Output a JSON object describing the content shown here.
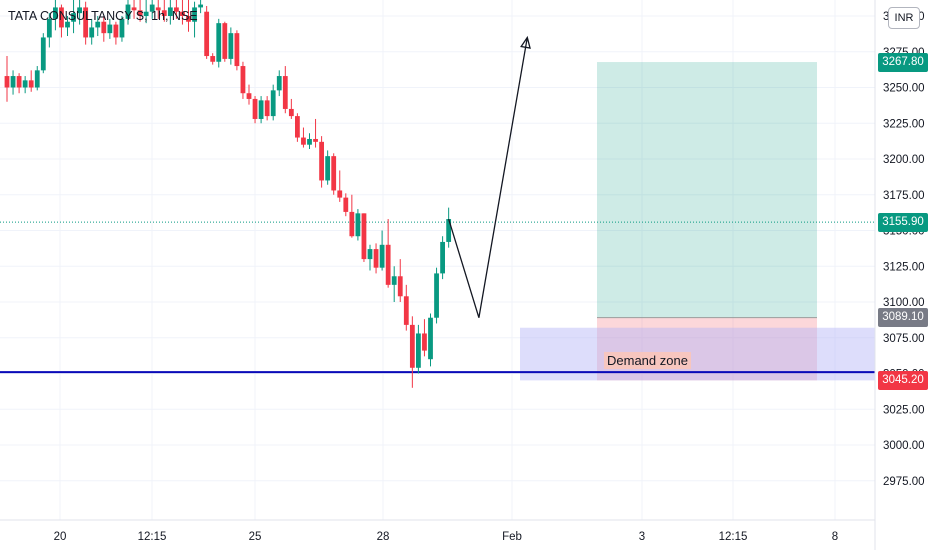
{
  "chart_data": {
    "type": "candlestick",
    "title": "TATA CONSULTANCY S, 1h, NSE",
    "currency": "INR",
    "y_ticks": [
      2975,
      3000,
      3025,
      3050,
      3075,
      3100,
      3125,
      3150,
      3175,
      3200,
      3225,
      3250,
      3275,
      3300
    ],
    "ylim": [
      2955,
      3312
    ],
    "x_tick_labels": [
      "20",
      "12:15",
      "25",
      "28",
      "Feb",
      "3",
      "12:15",
      "8"
    ],
    "candles": [
      [
        3258,
        3272,
        3240,
        3250
      ],
      [
        3250,
        3262,
        3245,
        3258
      ],
      [
        3258,
        3260,
        3246,
        3250
      ],
      [
        3250,
        3258,
        3246,
        3255
      ],
      [
        3255,
        3262,
        3247,
        3250
      ],
      [
        3250,
        3265,
        3248,
        3262
      ],
      [
        3262,
        3288,
        3260,
        3285
      ],
      [
        3285,
        3302,
        3278,
        3298
      ],
      [
        3298,
        3312,
        3290,
        3306
      ],
      [
        3306,
        3308,
        3285,
        3292
      ],
      [
        3292,
        3300,
        3286,
        3296
      ],
      [
        3296,
        3312,
        3288,
        3302
      ],
      [
        3302,
        3312,
        3294,
        3306
      ],
      [
        3306,
        3310,
        3280,
        3285
      ],
      [
        3285,
        3298,
        3280,
        3292
      ],
      [
        3292,
        3300,
        3286,
        3296
      ],
      [
        3296,
        3300,
        3282,
        3288
      ],
      [
        3288,
        3298,
        3284,
        3294
      ],
      [
        3294,
        3296,
        3280,
        3285
      ],
      [
        3285,
        3300,
        3282,
        3298
      ],
      [
        3298,
        3312,
        3294,
        3308
      ],
      [
        3306,
        3312,
        3298,
        3304
      ],
      [
        3304,
        3312,
        3296,
        3300
      ],
      [
        3300,
        3312,
        3295,
        3303
      ],
      [
        3303,
        3312,
        3298,
        3308
      ],
      [
        3306,
        3312,
        3298,
        3304
      ],
      [
        3304,
        3312,
        3296,
        3300
      ],
      [
        3300,
        3312,
        3294,
        3306
      ],
      [
        3306,
        3312,
        3298,
        3303
      ],
      [
        3303,
        3312,
        3294,
        3300
      ],
      [
        3300,
        3312,
        3289,
        3296
      ],
      [
        3296,
        3310,
        3285,
        3306
      ],
      [
        3306,
        3312,
        3302,
        3308
      ],
      [
        3303,
        3307,
        3270,
        3272
      ],
      [
        3272,
        3274,
        3266,
        3268
      ],
      [
        3268,
        3298,
        3264,
        3295
      ],
      [
        3295,
        3296,
        3268,
        3270
      ],
      [
        3270,
        3292,
        3266,
        3288
      ],
      [
        3288,
        3290,
        3262,
        3265
      ],
      [
        3265,
        3268,
        3242,
        3246
      ],
      [
        3246,
        3252,
        3238,
        3242
      ],
      [
        3242,
        3244,
        3225,
        3228
      ],
      [
        3228,
        3244,
        3225,
        3241
      ],
      [
        3241,
        3244,
        3227,
        3230
      ],
      [
        3230,
        3252,
        3227,
        3248
      ],
      [
        3248,
        3262,
        3244,
        3258
      ],
      [
        3258,
        3265,
        3232,
        3235
      ],
      [
        3235,
        3242,
        3228,
        3230
      ],
      [
        3230,
        3232,
        3212,
        3215
      ],
      [
        3215,
        3222,
        3208,
        3210
      ],
      [
        3210,
        3218,
        3207,
        3214
      ],
      [
        3214,
        3228,
        3208,
        3212
      ],
      [
        3212,
        3216,
        3180,
        3185
      ],
      [
        3185,
        3206,
        3182,
        3202
      ],
      [
        3202,
        3204,
        3175,
        3178
      ],
      [
        3178,
        3192,
        3170,
        3173
      ],
      [
        3173,
        3176,
        3160,
        3163
      ],
      [
        3163,
        3175,
        3145,
        3146
      ],
      [
        3146,
        3165,
        3143,
        3162
      ],
      [
        3162,
        3162,
        3128,
        3130
      ],
      [
        3130,
        3140,
        3122,
        3137
      ],
      [
        3137,
        3141,
        3120,
        3124
      ],
      [
        3124,
        3150,
        3122,
        3140
      ],
      [
        3140,
        3158,
        3110,
        3112
      ],
      [
        3112,
        3125,
        3100,
        3118
      ],
      [
        3118,
        3130,
        3100,
        3104
      ],
      [
        3104,
        3112,
        3080,
        3084
      ],
      [
        3084,
        3090,
        3040,
        3054
      ],
      [
        3054,
        3084,
        3050,
        3078
      ],
      [
        3078,
        3088,
        3062,
        3066
      ],
      [
        3060,
        3092,
        3055,
        3089
      ],
      [
        3089,
        3124,
        3085,
        3120
      ],
      [
        3120,
        3146,
        3116,
        3142
      ],
      [
        3142,
        3166,
        3138,
        3158
      ]
    ],
    "current_price": 3155.9,
    "demand_zone": {
      "label": "Demand zone",
      "top": 3082,
      "bottom": 3045.2
    },
    "horizontal_line": 3051,
    "position": {
      "target": 3267.8,
      "entry": 3089.1,
      "stop": 3045.2
    },
    "projection_path": [
      [
        73,
        3158
      ],
      [
        78,
        3089
      ],
      [
        86,
        3285
      ]
    ],
    "price_labels": [
      {
        "text": "3267.80",
        "value": 3267.8,
        "color": "#089981"
      },
      {
        "text": "3155.90",
        "value": 3155.9,
        "color": "#089981"
      },
      {
        "text": "3089.10",
        "value": 3089.1,
        "color": "#787b86"
      },
      {
        "text": "3045.20",
        "value": 3045.2,
        "color": "#f23645"
      }
    ],
    "colors": {
      "up": "#089981",
      "down": "#f23645",
      "line": "#0a0ab8",
      "zone": "#b3b3f7",
      "profit": "#089981",
      "loss": "#f23645"
    }
  }
}
